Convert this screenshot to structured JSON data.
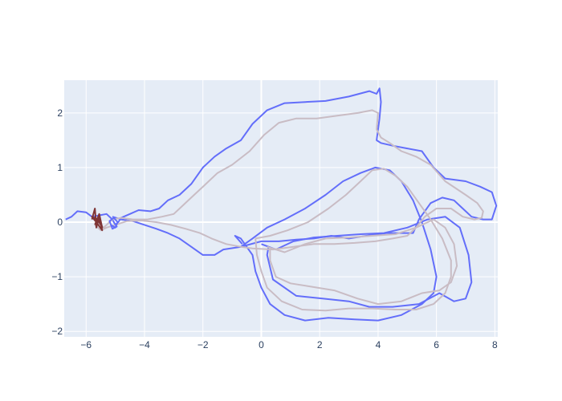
{
  "chart_data": {
    "type": "line",
    "title": "",
    "xlabel": "",
    "ylabel": "",
    "xlim": [
      -6.75,
      8.1
    ],
    "ylim": [
      -2.1,
      2.6
    ],
    "x_ticks": [
      -6,
      -4,
      -2,
      0,
      2,
      4,
      6,
      8
    ],
    "y_ticks": [
      -2,
      -1,
      0,
      1,
      2
    ],
    "grid": true,
    "legend": "none",
    "colors": {
      "plot_background": "#e5ecf6",
      "grid": "#ffffff",
      "tick_text": "#2a3f5f"
    },
    "series": [
      {
        "color": "#636efa",
        "points": [
          [
            -6.7,
            0.05
          ],
          [
            -6.5,
            0.1
          ],
          [
            -6.3,
            0.2
          ],
          [
            -6.0,
            0.18
          ],
          [
            -5.8,
            0.1
          ],
          [
            -5.6,
            0.12
          ],
          [
            -5.3,
            0.15
          ],
          [
            -5.1,
            0.05
          ],
          [
            -5.0,
            -0.05
          ],
          [
            -4.9,
            0.0
          ],
          [
            -4.8,
            0.08
          ],
          [
            -4.5,
            0.15
          ],
          [
            -4.2,
            0.22
          ],
          [
            -3.8,
            0.2
          ],
          [
            -3.5,
            0.25
          ],
          [
            -3.2,
            0.4
          ],
          [
            -2.8,
            0.5
          ],
          [
            -2.4,
            0.7
          ],
          [
            -2.0,
            1.0
          ],
          [
            -1.6,
            1.2
          ],
          [
            -1.2,
            1.35
          ],
          [
            -0.7,
            1.5
          ],
          [
            -0.3,
            1.8
          ],
          [
            0.2,
            2.05
          ],
          [
            0.8,
            2.18
          ],
          [
            1.5,
            2.2
          ],
          [
            2.2,
            2.22
          ],
          [
            3.0,
            2.3
          ],
          [
            3.7,
            2.4
          ],
          [
            3.95,
            2.35
          ],
          [
            4.05,
            2.45
          ],
          [
            4.1,
            2.2
          ],
          [
            4.05,
            1.9
          ],
          [
            3.95,
            1.5
          ],
          [
            4.1,
            1.45
          ],
          [
            4.5,
            1.4
          ],
          [
            5.0,
            1.35
          ],
          [
            5.5,
            1.3
          ],
          [
            5.9,
            1.0
          ],
          [
            6.3,
            0.8
          ],
          [
            7.0,
            0.75
          ],
          [
            7.5,
            0.65
          ],
          [
            7.9,
            0.55
          ],
          [
            8.05,
            0.3
          ],
          [
            7.9,
            0.05
          ],
          [
            7.6,
            0.05
          ],
          [
            7.2,
            0.1
          ],
          [
            6.9,
            0.25
          ],
          [
            6.6,
            0.4
          ],
          [
            6.2,
            0.45
          ],
          [
            5.8,
            0.35
          ],
          [
            5.6,
            0.2
          ],
          [
            5.4,
            0.05
          ],
          [
            5.2,
            -0.2
          ],
          [
            4.8,
            -0.2
          ],
          [
            4.3,
            -0.2
          ],
          [
            3.6,
            -0.25
          ],
          [
            3.0,
            -0.3
          ],
          [
            2.4,
            -0.25
          ],
          [
            1.8,
            -0.3
          ],
          [
            1.2,
            -0.32
          ],
          [
            0.6,
            -0.35
          ],
          [
            0.0,
            -0.35
          ],
          [
            -0.7,
            -0.45
          ],
          [
            -1.3,
            -0.5
          ],
          [
            -1.6,
            -0.6
          ],
          [
            -2.0,
            -0.6
          ],
          [
            -2.4,
            -0.45
          ],
          [
            -2.8,
            -0.3
          ],
          [
            -3.2,
            -0.2
          ],
          [
            -3.6,
            -0.12
          ],
          [
            -4.0,
            -0.05
          ],
          [
            -4.4,
            0.02
          ],
          [
            -4.8,
            0.05
          ],
          [
            -5.1,
            0.1
          ]
        ]
      },
      {
        "color": "#636efa",
        "points": [
          [
            -0.7,
            -0.45
          ],
          [
            -0.3,
            -0.3
          ],
          [
            0.2,
            -0.1
          ],
          [
            0.8,
            0.05
          ],
          [
            1.5,
            0.25
          ],
          [
            2.2,
            0.5
          ],
          [
            2.8,
            0.75
          ],
          [
            3.4,
            0.9
          ],
          [
            3.9,
            1.0
          ],
          [
            4.4,
            0.95
          ],
          [
            4.8,
            0.75
          ],
          [
            5.2,
            0.4
          ],
          [
            5.5,
            0.0
          ],
          [
            5.8,
            -0.5
          ],
          [
            6.0,
            -1.0
          ],
          [
            5.9,
            -1.3
          ],
          [
            5.5,
            -1.5
          ],
          [
            4.8,
            -1.7
          ],
          [
            4.0,
            -1.8
          ],
          [
            3.2,
            -1.78
          ],
          [
            2.3,
            -1.75
          ],
          [
            1.5,
            -1.8
          ],
          [
            0.8,
            -1.7
          ],
          [
            0.3,
            -1.5
          ],
          [
            0.0,
            -1.2
          ],
          [
            -0.2,
            -0.9
          ],
          [
            -0.3,
            -0.6
          ],
          [
            -0.7,
            -0.3
          ],
          [
            -0.9,
            -0.25
          ],
          [
            -0.65,
            -0.4
          ]
        ]
      },
      {
        "color": "#636efa",
        "points": [
          [
            0.0,
            -0.4
          ],
          [
            0.5,
            -0.5
          ],
          [
            1.1,
            -0.35
          ],
          [
            1.8,
            -0.28
          ],
          [
            2.6,
            -0.25
          ],
          [
            3.4,
            -0.22
          ],
          [
            4.2,
            -0.2
          ],
          [
            5.0,
            -0.1
          ],
          [
            5.7,
            0.05
          ],
          [
            6.3,
            0.1
          ],
          [
            6.8,
            -0.1
          ],
          [
            7.1,
            -0.6
          ],
          [
            7.2,
            -1.1
          ],
          [
            7.0,
            -1.4
          ],
          [
            6.6,
            -1.45
          ],
          [
            6.1,
            -1.3
          ],
          [
            5.4,
            -1.5
          ],
          [
            4.5,
            -1.55
          ],
          [
            3.7,
            -1.55
          ],
          [
            3.0,
            -1.45
          ],
          [
            2.1,
            -1.4
          ],
          [
            1.2,
            -1.35
          ],
          [
            0.4,
            -1.05
          ],
          [
            0.2,
            -0.6
          ],
          [
            0.25,
            -0.45
          ]
        ]
      },
      {
        "color": "#c9bcc4",
        "points": [
          [
            -5.8,
            0.1
          ],
          [
            -5.6,
            0.0
          ],
          [
            -5.4,
            -0.1
          ],
          [
            -5.1,
            0.05
          ],
          [
            -4.8,
            0.08
          ],
          [
            -4.4,
            0.05
          ],
          [
            -3.9,
            0.05
          ],
          [
            -3.4,
            0.1
          ],
          [
            -3.0,
            0.15
          ],
          [
            -2.7,
            0.3
          ],
          [
            -2.3,
            0.5
          ],
          [
            -1.9,
            0.7
          ],
          [
            -1.5,
            0.9
          ],
          [
            -1.0,
            1.05
          ],
          [
            -0.4,
            1.3
          ],
          [
            0.1,
            1.6
          ],
          [
            0.6,
            1.82
          ],
          [
            1.2,
            1.9
          ],
          [
            1.9,
            1.9
          ],
          [
            2.6,
            1.95
          ],
          [
            3.3,
            2.0
          ],
          [
            3.8,
            2.05
          ],
          [
            4.0,
            2.0
          ],
          [
            3.95,
            1.7
          ],
          [
            4.1,
            1.55
          ],
          [
            4.4,
            1.45
          ],
          [
            4.8,
            1.3
          ],
          [
            5.3,
            1.2
          ],
          [
            5.8,
            1.05
          ],
          [
            6.3,
            0.75
          ],
          [
            7.0,
            0.5
          ],
          [
            7.4,
            0.35
          ],
          [
            7.6,
            0.2
          ],
          [
            7.55,
            0.08
          ],
          [
            7.3,
            0.05
          ],
          [
            6.9,
            0.1
          ],
          [
            6.5,
            0.25
          ],
          [
            6.0,
            0.25
          ],
          [
            5.6,
            0.1
          ],
          [
            5.3,
            -0.1
          ],
          [
            5.0,
            -0.25
          ],
          [
            4.5,
            -0.3
          ],
          [
            3.9,
            -0.35
          ],
          [
            3.2,
            -0.38
          ],
          [
            2.5,
            -0.4
          ],
          [
            1.8,
            -0.4
          ],
          [
            1.1,
            -0.45
          ],
          [
            0.4,
            -0.5
          ],
          [
            -0.3,
            -0.48
          ],
          [
            -0.7,
            -0.45
          ],
          [
            -1.2,
            -0.4
          ],
          [
            -1.7,
            -0.3
          ],
          [
            -2.1,
            -0.2
          ],
          [
            -2.6,
            -0.12
          ],
          [
            -3.1,
            -0.05
          ],
          [
            -3.6,
            0.0
          ],
          [
            -4.1,
            0.03
          ],
          [
            -4.6,
            0.02
          ],
          [
            -5.0,
            -0.05
          ],
          [
            -5.3,
            -0.1
          ],
          [
            -5.5,
            -0.15
          ],
          [
            -5.7,
            -0.05
          ]
        ]
      },
      {
        "color": "#c9bcc4",
        "points": [
          [
            -0.2,
            -0.3
          ],
          [
            0.3,
            -0.25
          ],
          [
            0.9,
            -0.15
          ],
          [
            1.6,
            0.0
          ],
          [
            2.3,
            0.25
          ],
          [
            2.9,
            0.5
          ],
          [
            3.4,
            0.75
          ],
          [
            3.8,
            0.95
          ],
          [
            4.2,
            0.98
          ],
          [
            4.6,
            0.85
          ],
          [
            5.0,
            0.65
          ],
          [
            5.4,
            0.35
          ],
          [
            5.8,
            0.05
          ],
          [
            6.2,
            -0.3
          ],
          [
            6.5,
            -0.7
          ],
          [
            6.5,
            -1.0
          ],
          [
            6.3,
            -1.3
          ],
          [
            5.9,
            -1.5
          ],
          [
            5.3,
            -1.6
          ],
          [
            4.6,
            -1.6
          ],
          [
            3.8,
            -1.58
          ],
          [
            3.0,
            -1.58
          ],
          [
            2.2,
            -1.62
          ],
          [
            1.4,
            -1.6
          ],
          [
            0.7,
            -1.45
          ],
          [
            0.2,
            -1.2
          ],
          [
            0.0,
            -0.9
          ],
          [
            -0.15,
            -0.6
          ],
          [
            -0.2,
            -0.3
          ]
        ]
      },
      {
        "color": "#c9bcc4",
        "points": [
          [
            0.2,
            -0.45
          ],
          [
            0.8,
            -0.55
          ],
          [
            1.5,
            -0.4
          ],
          [
            2.2,
            -0.3
          ],
          [
            3.0,
            -0.28
          ],
          [
            3.8,
            -0.25
          ],
          [
            4.6,
            -0.22
          ],
          [
            5.3,
            -0.1
          ],
          [
            5.9,
            0.05
          ],
          [
            6.3,
            -0.1
          ],
          [
            6.6,
            -0.4
          ],
          [
            6.7,
            -0.8
          ],
          [
            6.5,
            -1.1
          ],
          [
            6.1,
            -1.25
          ],
          [
            5.5,
            -1.3
          ],
          [
            4.8,
            -1.45
          ],
          [
            4.0,
            -1.5
          ],
          [
            3.3,
            -1.4
          ],
          [
            2.5,
            -1.25
          ],
          [
            1.7,
            -1.18
          ],
          [
            1.0,
            -1.12
          ],
          [
            0.5,
            -1.0
          ],
          [
            0.3,
            -0.7
          ],
          [
            0.3,
            -0.5
          ]
        ]
      },
      {
        "color": "#7f3535",
        "points": [
          [
            -5.8,
            0.05
          ],
          [
            -5.7,
            0.25
          ],
          [
            -5.65,
            -0.1
          ],
          [
            -5.55,
            0.1
          ],
          [
            -5.45,
            -0.15
          ],
          [
            -5.65,
            0.0
          ],
          [
            -5.8,
            0.1
          ],
          [
            -5.6,
            0.05
          ],
          [
            -5.45,
            -0.1
          ],
          [
            -5.55,
            0.15
          ],
          [
            -5.7,
            -0.05
          ]
        ]
      },
      {
        "color": "#636efa",
        "points": [
          [
            -5.05,
            0.0
          ],
          [
            -4.95,
            -0.08
          ],
          [
            -5.1,
            -0.12
          ],
          [
            -5.2,
            0.02
          ],
          [
            -5.05,
            0.08
          ],
          [
            -4.92,
            0.0
          ],
          [
            -5.0,
            -0.1
          ],
          [
            -5.15,
            -0.05
          ]
        ]
      }
    ]
  }
}
